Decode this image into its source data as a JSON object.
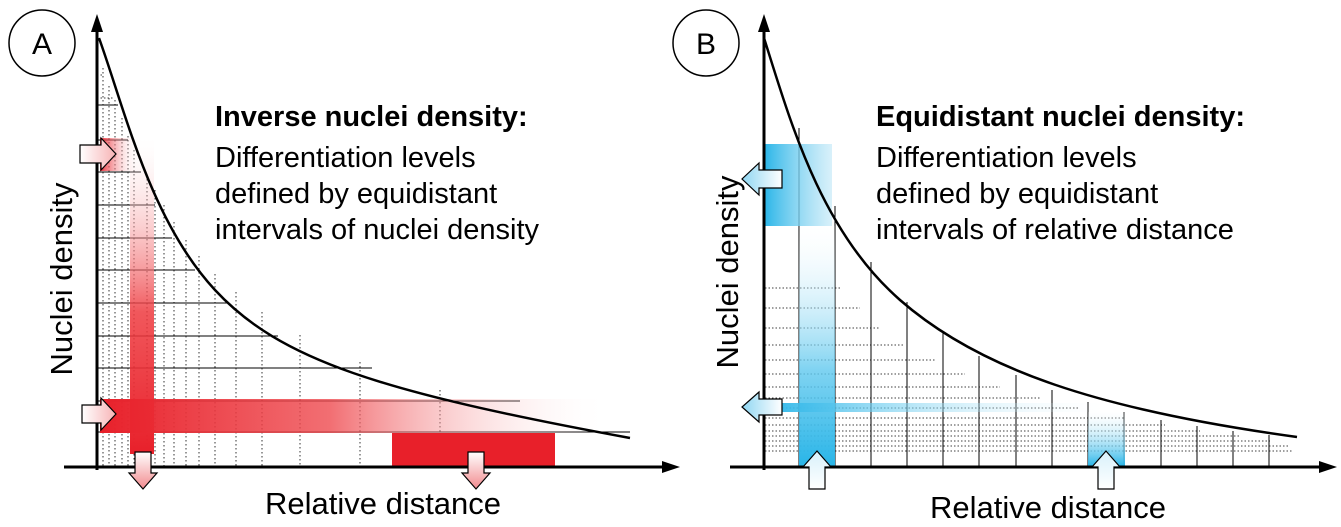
{
  "panels": {
    "a": {
      "badge": "A",
      "title": "Inverse nuclei density:",
      "desc_lines": [
        "Differentiation levels",
        "defined by equidistant",
        "intervals of nuclei density"
      ],
      "xlabel": "Relative distance",
      "ylabel": "Nuclei density",
      "accent": "#e8202a"
    },
    "b": {
      "badge": "B",
      "title": "Equidistant nuclei density:",
      "desc_lines": [
        "Differentiation levels",
        "defined by equidistant",
        "intervals of relative distance"
      ],
      "xlabel": "Relative distance",
      "ylabel": "Nuclei density",
      "accent": "#29b5e8"
    }
  }
}
